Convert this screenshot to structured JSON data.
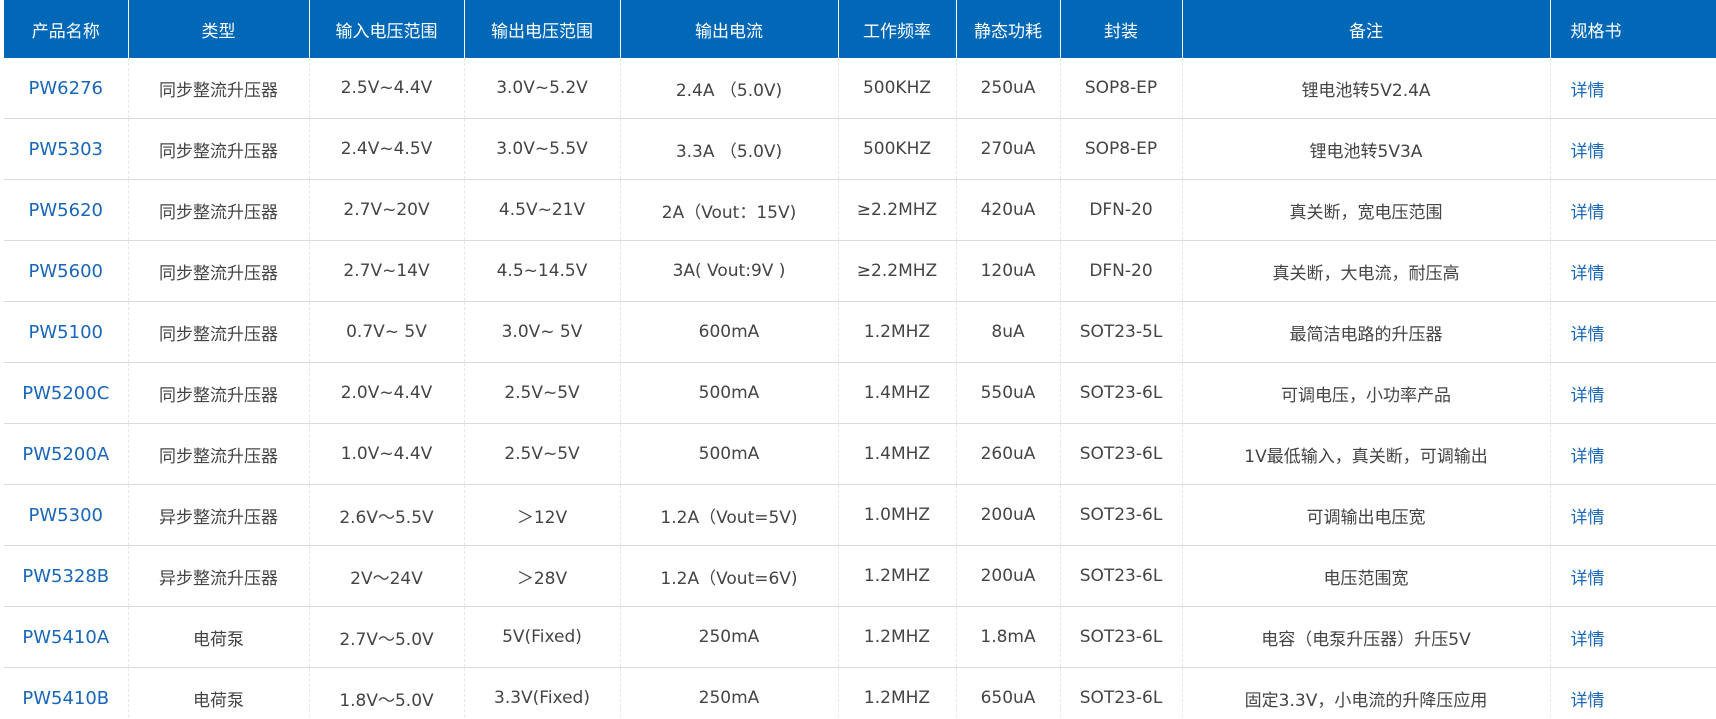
{
  "table": {
    "headers": [
      "产品名称",
      "类型",
      "输入电压范围",
      "输出电压范围",
      "输出电流",
      "工作频率",
      "静态功耗",
      "封装",
      "备注",
      "规格书"
    ],
    "rows": [
      [
        "PW6276",
        "同步整流升压器",
        "2.5V~4.4V",
        "3.0V~5.2V",
        "2.4A （5.0V)",
        "500KHZ",
        "250uA",
        "SOP8-EP",
        "锂电池转5V2.4A",
        "详情"
      ],
      [
        "PW5303",
        "同步整流升压器",
        "2.4V~4.5V",
        "3.0V~5.5V",
        "3.3A （5.0V)",
        "500KHZ",
        "270uA",
        "SOP8-EP",
        "锂电池转5V3A",
        "详情"
      ],
      [
        "PW5620",
        "同步整流升压器",
        "2.7V~20V",
        "4.5V~21V",
        "2A（Vout：15V)",
        "≥2.2MHZ",
        "420uA",
        "DFN-20",
        "真关断，宽电压范围",
        "详情"
      ],
      [
        "PW5600",
        "同步整流升压器",
        "2.7V~14V",
        "4.5~14.5V",
        "3A( Vout:9V )",
        "≥2.2MHZ",
        "120uA",
        "DFN-20",
        "真关断，大电流，耐压高",
        "详情"
      ],
      [
        "PW5100",
        "同步整流升压器",
        "0.7V~ 5V",
        "3.0V~ 5V",
        "600mA",
        "1.2MHZ",
        "8uA",
        "SOT23-5L",
        "最简洁电路的升压器",
        "详情"
      ],
      [
        "PW5200C",
        "同步整流升压器",
        "2.0V~4.4V",
        "2.5V~5V",
        "500mA",
        "1.4MHZ",
        "550uA",
        "SOT23-6L",
        "可调电压，小功率产品",
        "详情"
      ],
      [
        "PW5200A",
        "同步整流升压器",
        "1.0V~4.4V",
        "2.5V~5V",
        "500mA",
        "1.4MHZ",
        "260uA",
        "SOT23-6L",
        "1V最低输入，真关断，可调输出",
        "详情"
      ],
      [
        "PW5300",
        "异步整流升压器",
        "2.6V～5.5V",
        "＞12V",
        "1.2A（Vout=5V)",
        "1.0MHZ",
        "200uA",
        "SOT23-6L",
        "可调输出电压宽",
        "详情"
      ],
      [
        "PW5328B",
        "异步整流升压器",
        "2V～24V",
        "＞28V",
        "1.2A（Vout=6V)",
        "1.2MHZ",
        "200uA",
        "SOT23-6L",
        "电压范围宽",
        "详情"
      ],
      [
        "PW5410A",
        "电荷泵",
        "2.7V～5.0V",
        "5V(Fixed)",
        "250mA",
        "1.2MHZ",
        "1.8mA",
        "SOT23-6L",
        "电容（电泵升压器）升压5V",
        "详情"
      ],
      [
        "PW5410B",
        "电荷泵",
        "1.8V～5.0V",
        "3.3V(Fixed)",
        "250mA",
        "1.2MHZ",
        "650uA",
        "SOT23-6L",
        "固定3.3V，小电流的升降压应用",
        "详情"
      ]
    ]
  },
  "colors": {
    "header_bg": "#0068b7",
    "header_text": "#ffffff",
    "link": "#1a66b8",
    "cell_text": "#444444"
  }
}
